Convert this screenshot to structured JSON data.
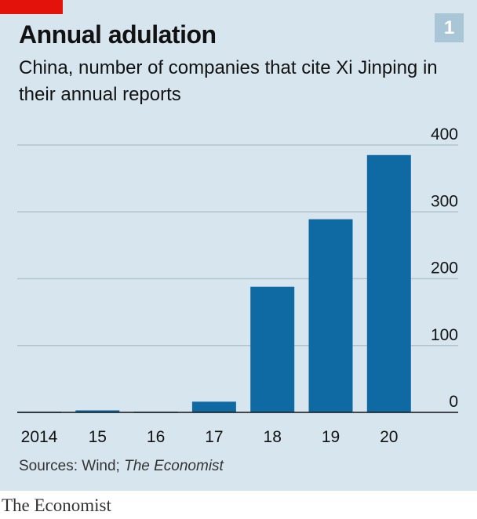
{
  "header": {
    "title": "Annual adulation",
    "subtitle": "China, number of companies that cite Xi Jinping in their annual reports",
    "badge": "1"
  },
  "chart_data": {
    "type": "bar",
    "categories": [
      "2014",
      "15",
      "16",
      "17",
      "18",
      "19",
      "20"
    ],
    "values": [
      1,
      3,
      1,
      16,
      188,
      289,
      385
    ],
    "y_ticks": [
      0,
      100,
      200,
      300,
      400
    ],
    "ylim": [
      0,
      400
    ],
    "y_axis_side": "right",
    "grid": true,
    "colors": {
      "bar": "#0f6aa3",
      "grid": "#b4c4cc",
      "axis": "#121212"
    }
  },
  "footer": {
    "source_prefix": "Sources: Wind; ",
    "source_italic": "The Economist",
    "brand": "The Economist"
  }
}
